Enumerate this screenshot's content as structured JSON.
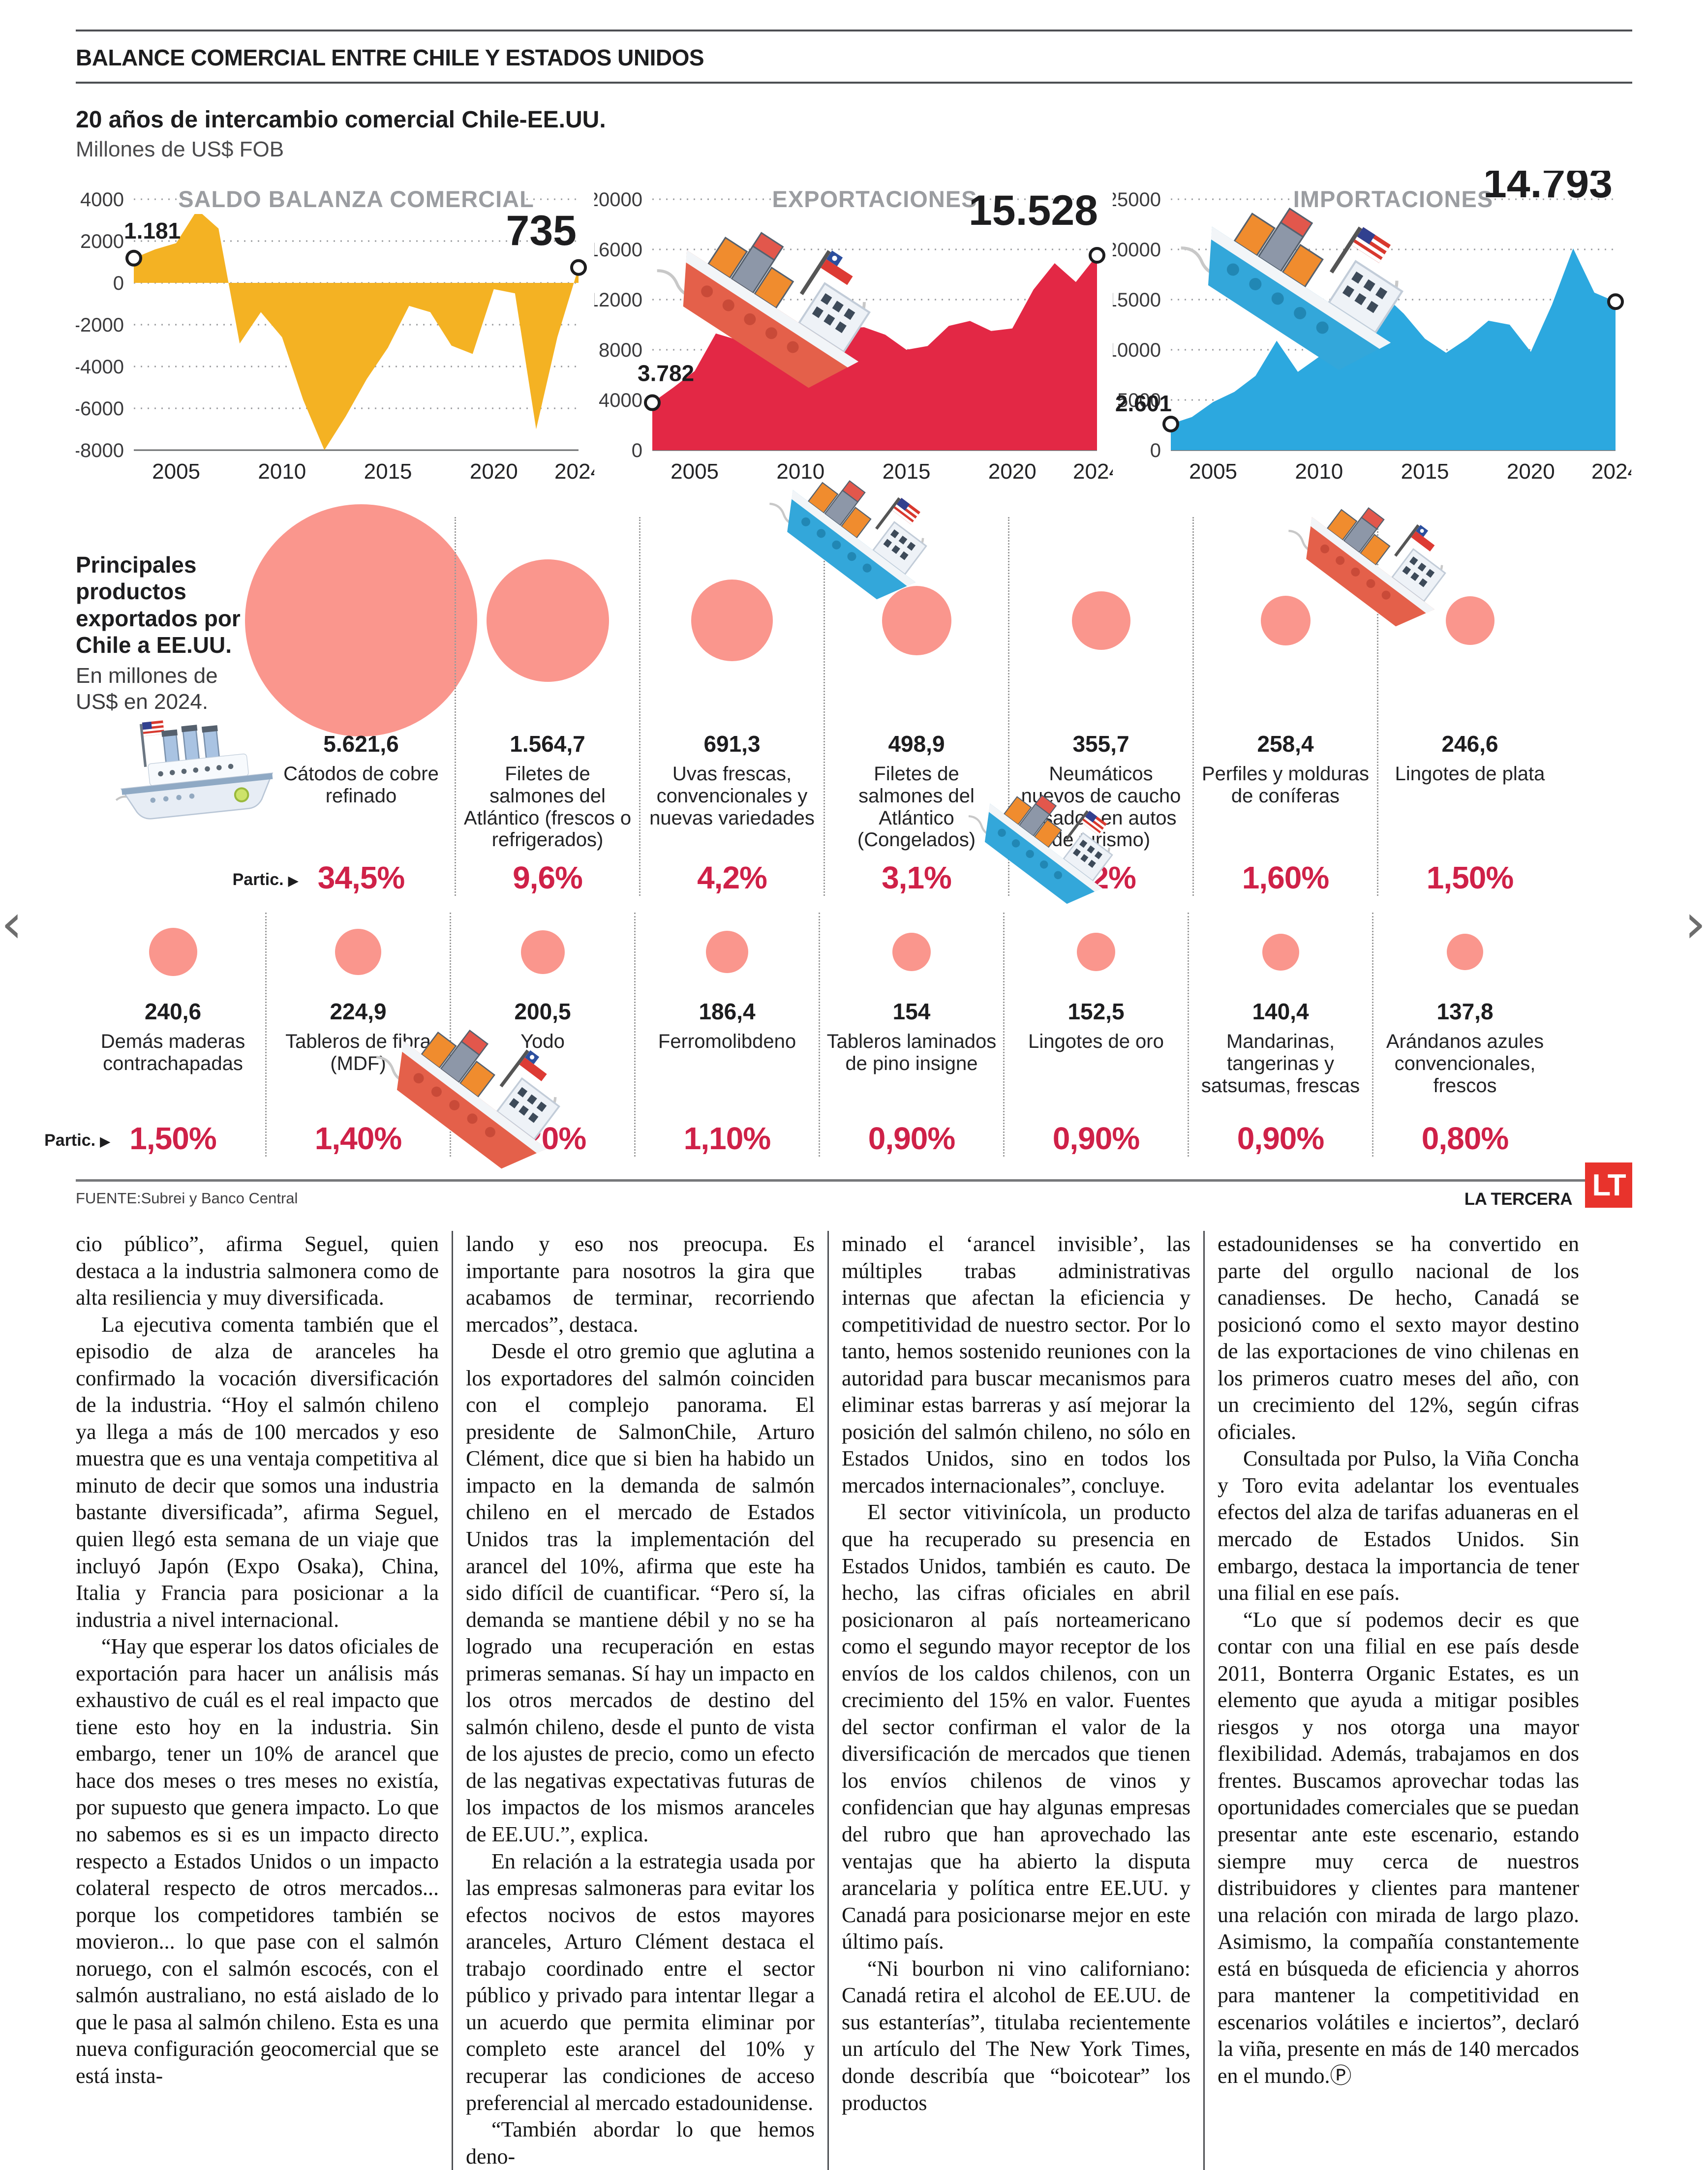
{
  "page": {
    "kicker": "BALANCE COMERCIAL ENTRE CHILE Y ESTADOS UNIDOS",
    "title": "20 años de intercambio comercial Chile-EE.UU.",
    "subtitle": "Millones de US$ FOB",
    "source": "FUENTE:Subrei y Banco Central",
    "brand": "LA TERCERA",
    "brand_logo": "LT"
  },
  "colors": {
    "saldo_area": "#F4B223",
    "export_area": "#E32845",
    "import_area": "#2CA8DF",
    "bubble": "#FA968D",
    "pct_red": "#CF2148",
    "chart_title_gray": "#9B9DA1"
  },
  "nav": {
    "prev": "‹",
    "next": "›"
  },
  "icons": [
    "cargo-ship-red-chile-flag-icon",
    "cargo-ship-blue-us-flag-icon",
    "steamship-us-flag-icon",
    "lt-logo",
    "partic-arrow-icon",
    "prev-arrow-icon",
    "next-arrow-icon",
    "end-of-article-p-icon"
  ],
  "chart_data": [
    {
      "type": "area",
      "title": "SALDO BALANZA COMERCIAL",
      "color": "#F4B223",
      "x_range": [
        2003,
        2024
      ],
      "xticks": [
        2005,
        2010,
        2015,
        2020,
        2024
      ],
      "ylim": [
        -8000,
        4000
      ],
      "yticks": [
        4000,
        2000,
        0,
        -2000,
        -4000,
        -6000,
        -8000
      ],
      "baseline": 0,
      "start_label": "1.181",
      "end_label": "735",
      "label_layout": {
        "start_dx": -20,
        "start_dy": -40,
        "start_anchor": "start",
        "end_dx": -4,
        "end_dy": -46
      },
      "series": [
        [
          2003,
          1181
        ],
        [
          2004,
          1600
        ],
        [
          2005,
          1900
        ],
        [
          2006,
          3500
        ],
        [
          2007,
          2600
        ],
        [
          2008,
          -2900
        ],
        [
          2009,
          -1400
        ],
        [
          2010,
          -2600
        ],
        [
          2011,
          -5600
        ],
        [
          2012,
          -8000
        ],
        [
          2013,
          -6400
        ],
        [
          2014,
          -4600
        ],
        [
          2015,
          -3100
        ],
        [
          2016,
          -1100
        ],
        [
          2017,
          -1400
        ],
        [
          2018,
          -3000
        ],
        [
          2019,
          -3400
        ],
        [
          2020,
          -300
        ],
        [
          2021,
          -500
        ],
        [
          2022,
          -7000
        ],
        [
          2023,
          -2600
        ],
        [
          2024,
          735
        ]
      ]
    },
    {
      "type": "area",
      "title": "EXPORTACIONES",
      "color": "#E32845",
      "x_range": [
        2003,
        2024
      ],
      "xticks": [
        2005,
        2010,
        2015,
        2020,
        2024
      ],
      "ylim": [
        0,
        20000
      ],
      "yticks": [
        0,
        4000,
        8000,
        12000,
        16000,
        20000
      ],
      "baseline": 0,
      "start_label": "3.782",
      "end_label": "15.528",
      "label_layout": {
        "start_dx": -30,
        "start_dy": -44,
        "start_anchor": "start",
        "end_dx": 2,
        "end_dy": -62
      },
      "series": [
        [
          2003,
          3782
        ],
        [
          2004,
          5000
        ],
        [
          2005,
          6300
        ],
        [
          2006,
          9300
        ],
        [
          2007,
          8800
        ],
        [
          2008,
          8200
        ],
        [
          2009,
          6500
        ],
        [
          2010,
          7000
        ],
        [
          2011,
          9200
        ],
        [
          2012,
          9700
        ],
        [
          2013,
          9800
        ],
        [
          2014,
          9200
        ],
        [
          2015,
          8000
        ],
        [
          2016,
          8300
        ],
        [
          2017,
          9900
        ],
        [
          2018,
          10300
        ],
        [
          2019,
          9500
        ],
        [
          2020,
          9700
        ],
        [
          2021,
          12800
        ],
        [
          2022,
          14900
        ],
        [
          2023,
          13400
        ],
        [
          2024,
          15528
        ]
      ]
    },
    {
      "type": "area",
      "title": "IMPORTACIONES",
      "color": "#2CA8DF",
      "x_range": [
        2003,
        2024
      ],
      "xticks": [
        2005,
        2010,
        2015,
        2020,
        2024
      ],
      "ylim": [
        0,
        25000
      ],
      "yticks": [
        0,
        5000,
        10000,
        15000,
        20000,
        25000
      ],
      "baseline": 0,
      "start_label": "2.601",
      "end_label": "14.793",
      "label_layout": {
        "start_dx": 2,
        "start_dy": -26,
        "start_anchor": "end",
        "end_dx": -6,
        "end_dy": -212
      },
      "series": [
        [
          2003,
          2601
        ],
        [
          2004,
          3300
        ],
        [
          2005,
          4800
        ],
        [
          2006,
          5800
        ],
        [
          2007,
          7400
        ],
        [
          2008,
          10900
        ],
        [
          2009,
          7800
        ],
        [
          2010,
          9300
        ],
        [
          2011,
          14500
        ],
        [
          2012,
          17400
        ],
        [
          2013,
          15600
        ],
        [
          2014,
          13600
        ],
        [
          2015,
          11100
        ],
        [
          2016,
          9700
        ],
        [
          2017,
          11100
        ],
        [
          2018,
          12900
        ],
        [
          2019,
          12500
        ],
        [
          2020,
          9800
        ],
        [
          2021,
          14500
        ],
        [
          2022,
          20100
        ],
        [
          2023,
          15700
        ],
        [
          2024,
          14793
        ]
      ]
    }
  ],
  "bubbles": {
    "intro_bold": "Principales productos exportados por Chile a EE.UU.",
    "intro_note": "En millones de US$ en 2024.",
    "partic_label": "Partic.",
    "partic_arrow": "▶",
    "row1": [
      {
        "value": 5621.6,
        "value_label": "5.621,6",
        "name": "Cátodos de cobre refinado",
        "pct": "34,5%"
      },
      {
        "value": 1564.7,
        "value_label": "1.564,7",
        "name": "Filetes de salmones del Atlántico (frescos o refrigerados)",
        "pct": "9,6%"
      },
      {
        "value": 691.3,
        "value_label": "691,3",
        "name": "Uvas frescas, convencionales y nuevas variedades",
        "pct": "4,2%"
      },
      {
        "value": 498.9,
        "value_label": "498,9",
        "name": "Filetes de salmones del Atlántico (Congelados)",
        "pct": "3,1%"
      },
      {
        "value": 355.7,
        "value_label": "355,7",
        "name": "Neumáticos nuevos de caucho (usados en autos de turismo)",
        "pct": "2,2%"
      },
      {
        "value": 258.4,
        "value_label": "258,4",
        "name": "Perfiles y molduras de coníferas",
        "pct": "1,60%"
      },
      {
        "value": 246.6,
        "value_label": "246,6",
        "name": "Lingotes de plata",
        "pct": "1,50%"
      }
    ],
    "row2": [
      {
        "value": 240.6,
        "value_label": "240,6",
        "name": "Demás maderas contrachapadas",
        "pct": "1,50%"
      },
      {
        "value": 224.9,
        "value_label": "224,9",
        "name": "Tableros de fibra (MDF)",
        "pct": "1,40%"
      },
      {
        "value": 200.5,
        "value_label": "200,5",
        "name": "Yodo",
        "pct": "1,20%"
      },
      {
        "value": 186.4,
        "value_label": "186,4",
        "name": "Ferromolibdeno",
        "pct": "1,10%"
      },
      {
        "value": 154,
        "value_label": "154",
        "name": "Tableros laminados de pino insigne",
        "pct": "0,90%"
      },
      {
        "value": 152.5,
        "value_label": "152,5",
        "name": "Lingotes de oro",
        "pct": "0,90%"
      },
      {
        "value": 140.4,
        "value_label": "140,4",
        "name": "Mandarinas, tangerinas y satsumas, frescas",
        "pct": "0,90%"
      },
      {
        "value": 137.8,
        "value_label": "137,8",
        "name": "Arándanos azules convencionales, frescos",
        "pct": "0,80%"
      }
    ]
  },
  "article": {
    "columns": [
      {
        "paragraphs": [
          {
            "indent": false,
            "text": "cio público”, afirma Seguel, quien destaca a la industria salmonera como de alta resiliencia y muy diversificada."
          },
          {
            "indent": true,
            "text": "La ejecutiva comenta también que el episodio de alza de aranceles ha confirmado la vocación diversificación de la industria. “Hoy el salmón chileno ya llega a más de 100 mercados y eso muestra que es una ventaja competitiva al minuto de decir que somos una industria bastante diversificada”, afirma Seguel, quien llegó esta semana de un viaje que incluyó Japón (Expo Osaka), China, Italia y Francia para posicionar a la industria a nivel internacional."
          },
          {
            "indent": true,
            "text": "“Hay que esperar los datos oficiales de exportación para hacer un análisis más exhaustivo de cuál es el real impacto que tiene esto hoy en la industria. Sin embargo, tener un 10% de arancel que hace dos meses o tres meses no existía, por supuesto que genera impacto. Lo que no sabemos es si es un impacto directo respecto a Estados Unidos o un impacto colateral respecto de otros mercados... porque los competidores también se movieron... lo que pase con el salmón noruego, con el salmón escocés, con el salmón australiano, no está aislado de lo que le pasa al salmón chileno. Esta es una nueva configuración geocomercial que se está insta-"
          }
        ]
      },
      {
        "paragraphs": [
          {
            "indent": false,
            "text": "lando y eso nos preocupa. Es importante para nosotros la gira que acabamos de terminar, recorriendo mercados”, destaca."
          },
          {
            "indent": true,
            "text": "Desde el otro gremio que aglutina a los exportadores del salmón coinciden con el complejo panorama. El presidente de SalmonChile, Arturo Clément, dice que si bien ha habido un impacto en la demanda de salmón chileno en el mercado de Estados Unidos tras la implementación del arancel del 10%, afirma que este ha sido difícil de cuantificar. “Pero sí, la demanda se mantiene débil y no se ha logrado una recuperación en estas primeras semanas. Sí hay un impacto en los otros mercados de destino del salmón chileno, desde el punto de vista de los ajustes de precio, como un efecto de las negativas expectativas futuras de los impactos de los mismos aranceles de EE.UU.”, explica."
          },
          {
            "indent": true,
            "text": "En relación a la estrategia usada por las empresas salmoneras para evitar los efectos nocivos de estos mayores aranceles, Arturo Clément destaca el trabajo coordinado entre el sector público y privado para intentar llegar a un acuerdo que permita eliminar por completo este arancel del 10% y recuperar las condiciones de acceso preferencial al mercado estadounidense."
          },
          {
            "indent": true,
            "text": "“También abordar lo que hemos deno-"
          }
        ]
      },
      {
        "paragraphs": [
          {
            "indent": false,
            "text": "minado el ‘arancel invisible’, las múltiples trabas administrativas internas que afectan la eficiencia y competitividad de nuestro sector. Por lo tanto, hemos sostenido reuniones con la autoridad para buscar mecanismos para eliminar estas barreras y así mejorar la posición del salmón chileno, no sólo en Estados Unidos, sino en todos los mercados internacionales”, concluye."
          },
          {
            "indent": true,
            "text": "El sector vitivinícola, un producto que ha recuperado su presencia en Estados Unidos, también es cauto. De hecho, las cifras oficiales en abril posicionaron al país norteamericano como el segundo mayor receptor de los envíos de los caldos chilenos, con un crecimiento del 15% en valor. Fuentes del sector confirman el valor de la diversificación de mercados que tienen los envíos chilenos de vinos y confidencian que hay algunas empresas del rubro que han aprovechado las ventajas que ha abierto la disputa arancelaria y política entre EE.UU. y Canadá para posicionarse mejor en este último país."
          },
          {
            "indent": true,
            "text": "“Ni bourbon ni vino californiano: Canadá retira el alcohol de EE.UU. de sus estanterías”, titulaba recientemente un artículo del The New York Times, donde describía que “boicotear” los productos"
          }
        ]
      },
      {
        "paragraphs": [
          {
            "indent": false,
            "text": "estadounidenses se ha convertido en parte del orgullo nacional de los canadienses. De hecho, Canadá se posicionó como el sexto mayor destino de las exportaciones de vino chilenas en los primeros cuatro meses del año, con un crecimiento del 12%, según cifras oficiales."
          },
          {
            "indent": true,
            "text": "Consultada por Pulso, la Viña Concha y Toro evita adelantar los eventuales efectos del alza de tarifas aduaneras en el mercado de Estados Unidos. Sin embargo, destaca la importancia de tener una filial en ese país."
          },
          {
            "indent": true,
            "text": "“Lo que sí podemos decir es que contar con una filial en ese país desde 2011, Bonterra Organic Estates, es un elemento que ayuda a mitigar posibles riesgos y nos otorga una mayor flexibilidad. Además, trabajamos en dos frentes. Buscamos aprovechar todas las oportunidades comerciales que se puedan presentar ante este escenario, estando siempre muy cerca de nuestros distribuidores y clientes para mantener una relación con mirada de largo plazo. Asimismo, la compañía constantemente está en búsqueda de eficiencia y ahorros para mantener la competitividad en escenarios volátiles e inciertos”, declaró la viña, presente en más de 140 mercados en el mundo.Ⓟ"
          }
        ]
      }
    ]
  }
}
